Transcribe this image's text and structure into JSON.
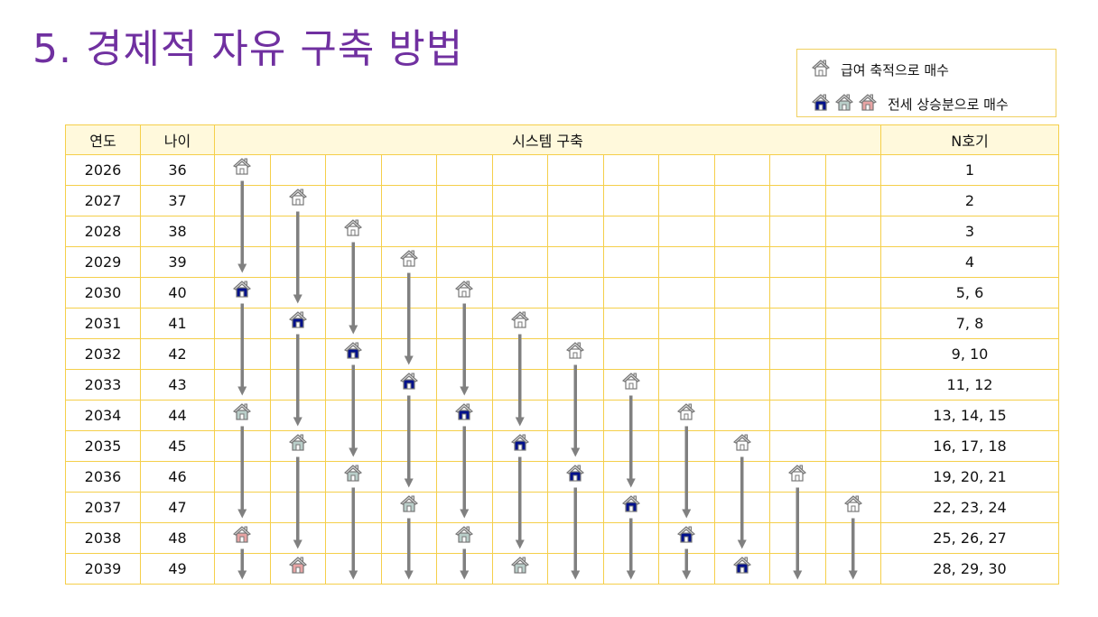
{
  "title": "5. 경제적 자유 구축 방법",
  "legend": {
    "salary_label": "급여 축적으로 매수",
    "jeonse_label": "전세 상승분으로 매수",
    "salary_icon": "house-outline-icon",
    "jeonse_icons": [
      "house-blue-icon",
      "house-teal-icon",
      "house-pink-icon"
    ]
  },
  "colors": {
    "title": "#7030a0",
    "grid": "#f5cf4a",
    "header_bg": "#fff9dc",
    "house_blue": "#00108c",
    "house_teal": "#b9cec9",
    "house_pink": "#e8a4a4",
    "arrow": "#808080"
  },
  "table": {
    "headers": {
      "year": "연도",
      "age": "나이",
      "system": "시스템 구축",
      "count": "N호기"
    },
    "rows": [
      {
        "year": "2026",
        "age": "36",
        "houses": [
          "outline",
          "",
          "",
          "",
          "",
          "",
          "",
          "",
          "",
          "",
          "",
          ""
        ],
        "count": "1"
      },
      {
        "year": "2027",
        "age": "37",
        "houses": [
          "",
          "outline",
          "",
          "",
          "",
          "",
          "",
          "",
          "",
          "",
          "",
          ""
        ],
        "count": "2"
      },
      {
        "year": "2028",
        "age": "38",
        "houses": [
          "",
          "",
          "outline",
          "",
          "",
          "",
          "",
          "",
          "",
          "",
          "",
          ""
        ],
        "count": "3"
      },
      {
        "year": "2029",
        "age": "39",
        "houses": [
          "",
          "",
          "",
          "outline",
          "",
          "",
          "",
          "",
          "",
          "",
          "",
          ""
        ],
        "count": "4"
      },
      {
        "year": "2030",
        "age": "40",
        "houses": [
          "blue",
          "",
          "",
          "",
          "outline",
          "",
          "",
          "",
          "",
          "",
          "",
          ""
        ],
        "count": "5, 6"
      },
      {
        "year": "2031",
        "age": "41",
        "houses": [
          "",
          "blue",
          "",
          "",
          "",
          "outline",
          "",
          "",
          "",
          "",
          "",
          ""
        ],
        "count": "7, 8"
      },
      {
        "year": "2032",
        "age": "42",
        "houses": [
          "",
          "",
          "blue",
          "",
          "",
          "",
          "outline",
          "",
          "",
          "",
          "",
          ""
        ],
        "count": "9, 10"
      },
      {
        "year": "2033",
        "age": "43",
        "houses": [
          "",
          "",
          "",
          "blue",
          "",
          "",
          "",
          "outline",
          "",
          "",
          "",
          ""
        ],
        "count": "11, 12"
      },
      {
        "year": "2034",
        "age": "44",
        "houses": [
          "teal",
          "",
          "",
          "",
          "blue",
          "",
          "",
          "",
          "outline",
          "",
          "",
          ""
        ],
        "count": "13, 14, 15"
      },
      {
        "year": "2035",
        "age": "45",
        "houses": [
          "",
          "teal",
          "",
          "",
          "",
          "blue",
          "",
          "",
          "",
          "outline",
          "",
          ""
        ],
        "count": "16, 17, 18"
      },
      {
        "year": "2036",
        "age": "46",
        "houses": [
          "",
          "",
          "teal",
          "",
          "",
          "",
          "blue",
          "",
          "",
          "",
          "outline",
          ""
        ],
        "count": "19, 20, 21"
      },
      {
        "year": "2037",
        "age": "47",
        "houses": [
          "",
          "",
          "",
          "teal",
          "",
          "",
          "",
          "blue",
          "",
          "",
          "",
          "outline"
        ],
        "count": "22, 23, 24"
      },
      {
        "year": "2038",
        "age": "48",
        "houses": [
          "pink",
          "",
          "",
          "",
          "teal",
          "",
          "",
          "",
          "blue",
          "",
          "",
          ""
        ],
        "count": "25, 26, 27"
      },
      {
        "year": "2039",
        "age": "49",
        "houses": [
          "",
          "pink",
          "",
          "",
          "",
          "teal",
          "",
          "",
          "",
          "blue",
          "",
          ""
        ],
        "count": "28, 29, 30"
      }
    ]
  }
}
